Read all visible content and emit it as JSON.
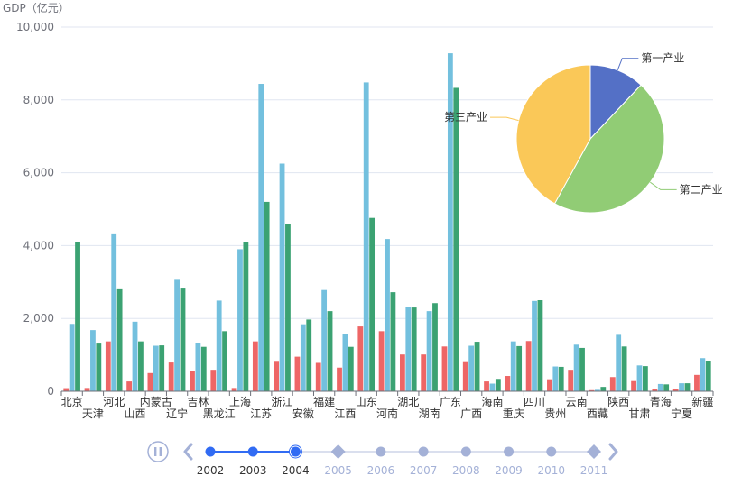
{
  "chart_data": {
    "type": "bar",
    "y_axis_label": "GDP（亿元）",
    "ylim": [
      0,
      10000
    ],
    "y_ticks": [
      "0",
      "2,000",
      "4,000",
      "6,000",
      "8,000",
      "10,000"
    ],
    "grid": true,
    "categories": [
      "北京",
      "天津",
      "河北",
      "山西",
      "内蒙古",
      "辽宁",
      "吉林",
      "黑龙江",
      "上海",
      "江苏",
      "浙江",
      "安徽",
      "福建",
      "江西",
      "山东",
      "河南",
      "湖北",
      "湖南",
      "广东",
      "广西",
      "海南",
      "重庆",
      "四川",
      "贵州",
      "云南",
      "西藏",
      "陕西",
      "甘肃",
      "青海",
      "宁夏",
      "新疆"
    ],
    "series": [
      {
        "color": "#ee6666",
        "values": [
          85,
          90,
          1370,
          270,
          500,
          790,
          560,
          590,
          90,
          1370,
          810,
          950,
          780,
          650,
          1780,
          1650,
          1010,
          1010,
          1230,
          800,
          270,
          420,
          1380,
          330,
          590,
          30,
          390,
          280,
          60,
          60,
          450
        ]
      },
      {
        "color": "#73c0de",
        "values": [
          1850,
          1680,
          4310,
          1910,
          1250,
          3060,
          1320,
          2490,
          3900,
          8440,
          6250,
          1840,
          2780,
          1560,
          8480,
          4180,
          2320,
          2200,
          9280,
          1250,
          210,
          1370,
          2480,
          680,
          1280,
          40,
          1550,
          710,
          200,
          220,
          910
        ]
      },
      {
        "color": "#3ba272",
        "values": [
          4100,
          1310,
          2800,
          1370,
          1260,
          2820,
          1220,
          1650,
          4100,
          5200,
          4580,
          1970,
          2200,
          1220,
          4760,
          2720,
          2300,
          2420,
          8330,
          1360,
          340,
          1240,
          2500,
          670,
          1190,
          120,
          1230,
          690,
          190,
          220,
          830
        ]
      }
    ],
    "pie": {
      "type": "pie",
      "slices": [
        {
          "label": "第一产业",
          "value": 12,
          "color": "#5470c6"
        },
        {
          "label": "第二产业",
          "value": 46,
          "color": "#91cc75"
        },
        {
          "label": "第三产业",
          "value": 42,
          "color": "#fac858"
        }
      ]
    }
  },
  "timeline": {
    "years": [
      "2002",
      "2003",
      "2004",
      "2005",
      "2006",
      "2007",
      "2008",
      "2009",
      "2010",
      "2011"
    ],
    "current_index": 2,
    "active_color": "#316bf3",
    "inactive_color": "#a4b1d7"
  }
}
